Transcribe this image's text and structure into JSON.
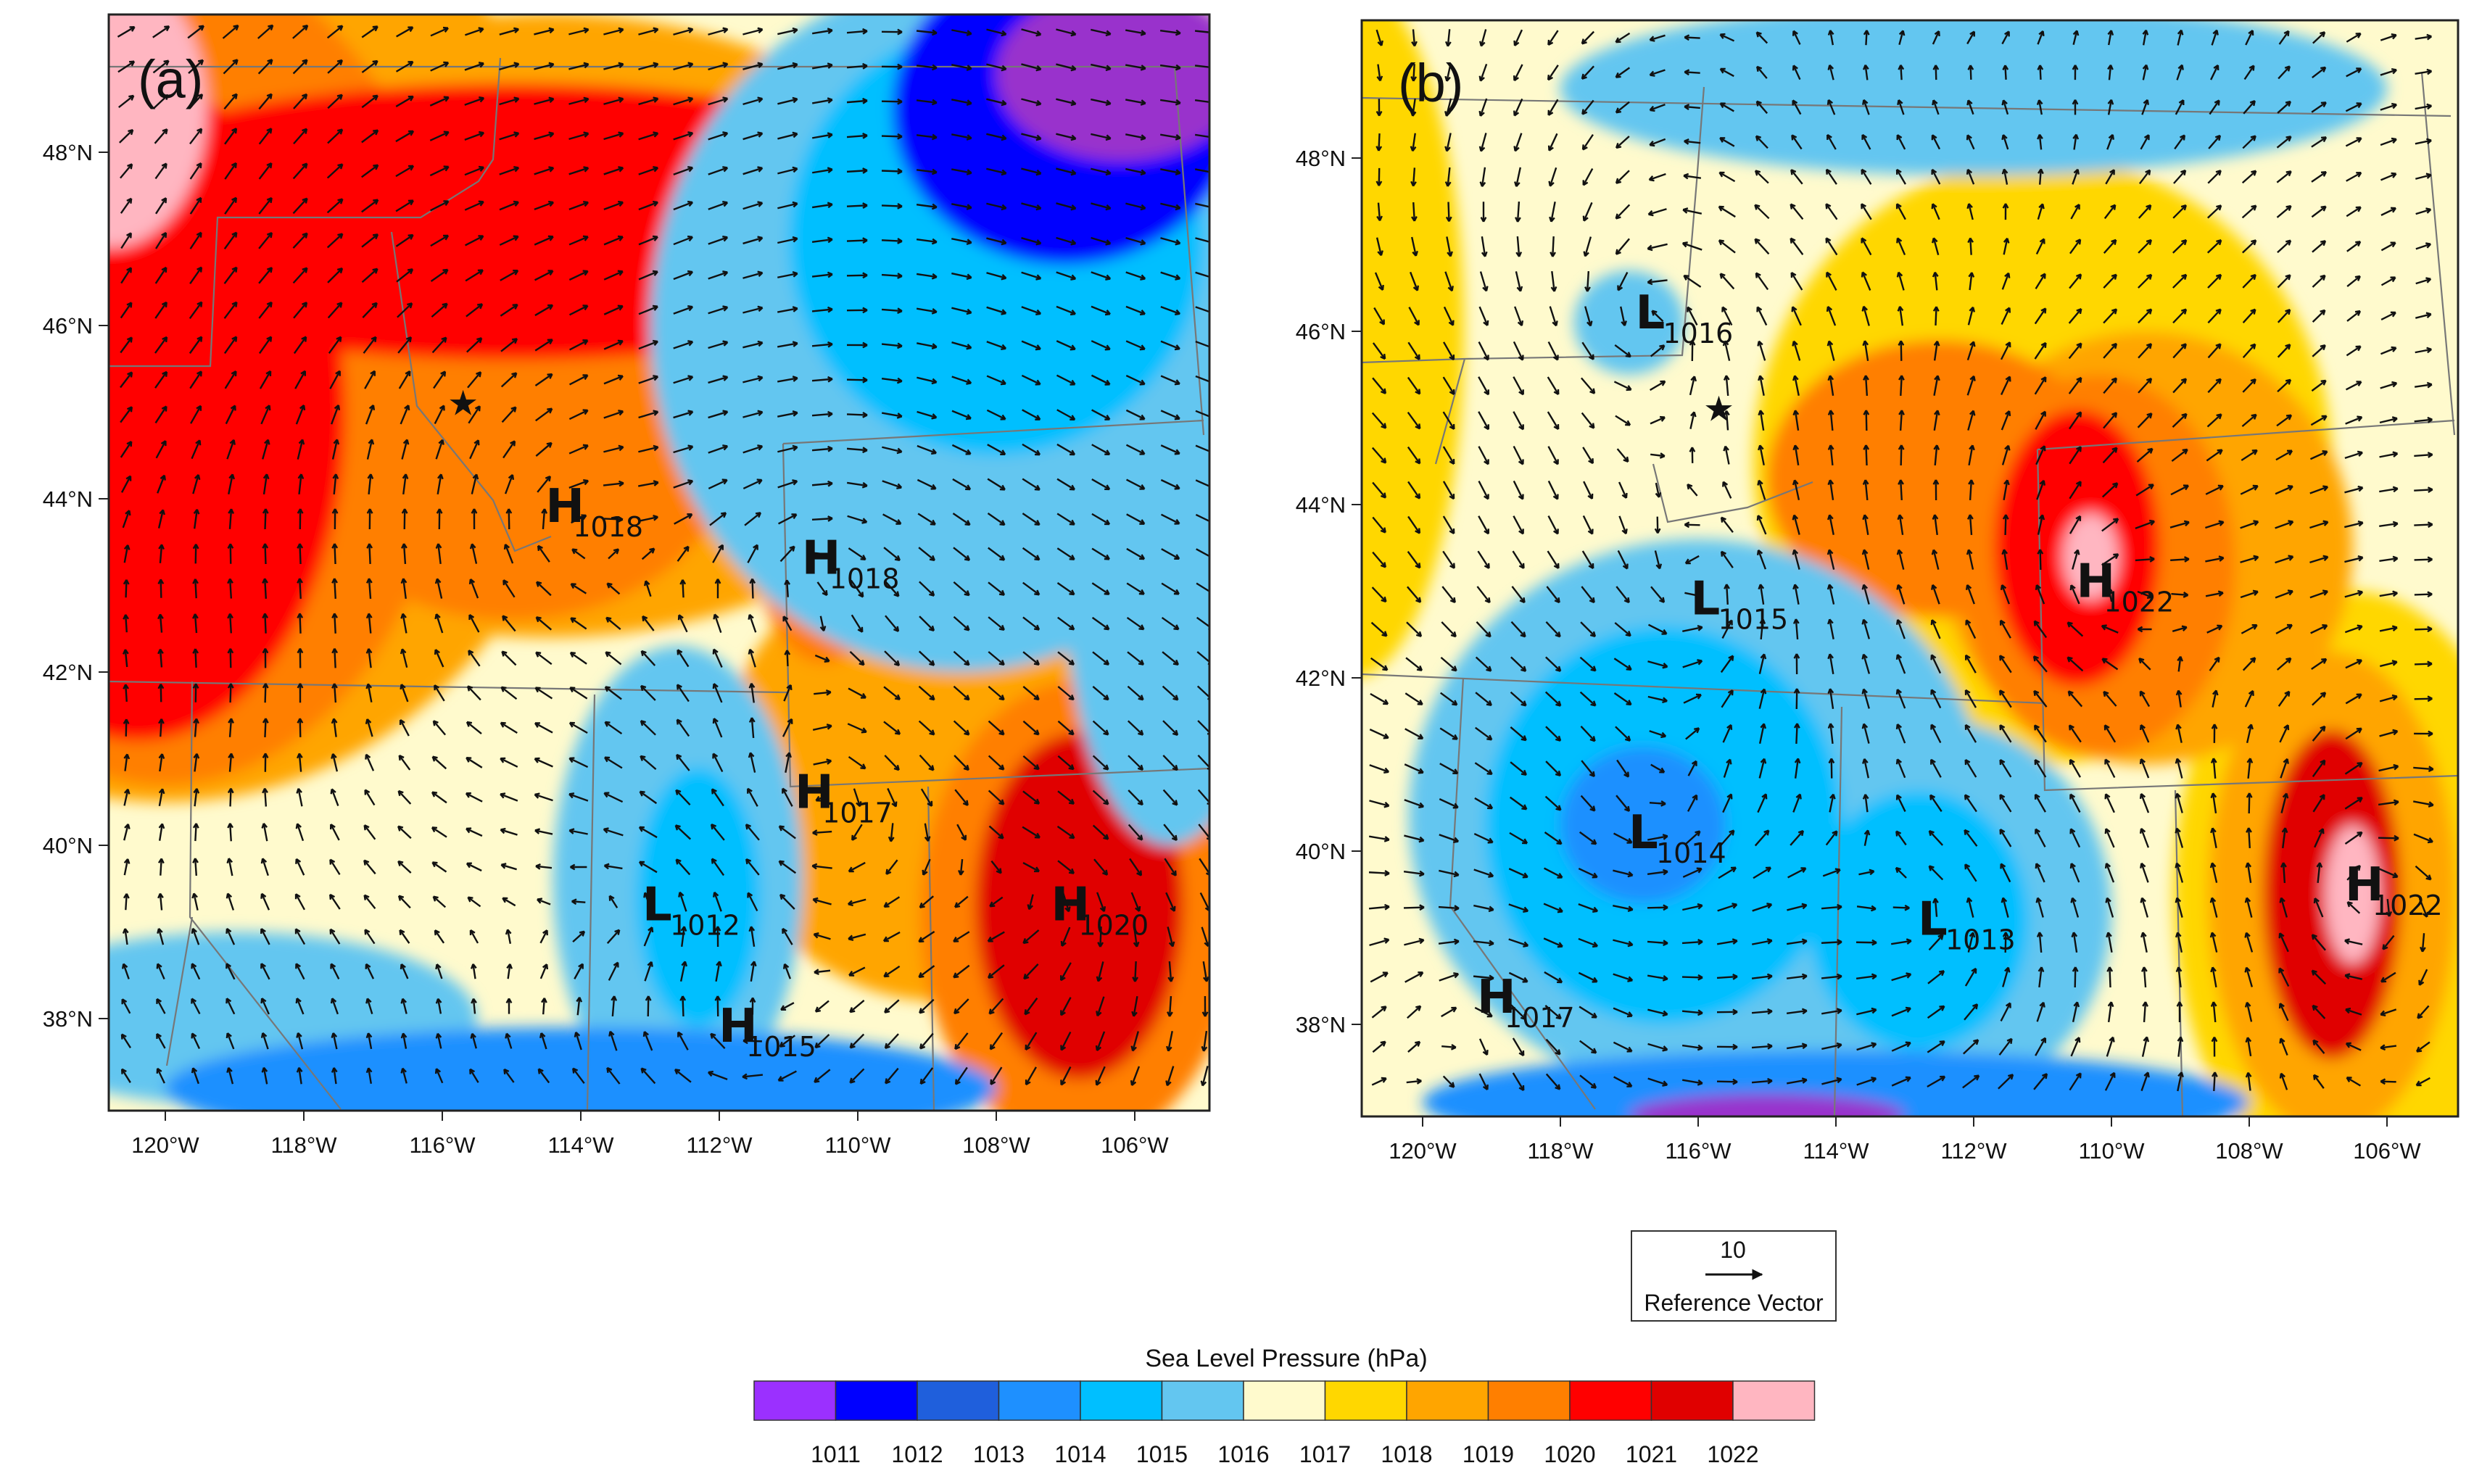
{
  "figure": {
    "panels": [
      {
        "id": "a",
        "label": "(a)",
        "lon_ticks": [
          "120°W",
          "118°W",
          "116°W",
          "114°W",
          "112°W",
          "110°W",
          "108°W",
          "106°W"
        ],
        "lat_ticks": [
          "48°N",
          "46°N",
          "44°N",
          "42°N",
          "40°N",
          "38°N"
        ],
        "base_color": "#fffacd",
        "blobs": [
          {
            "lon": -120.0,
            "lat": 46.0,
            "rx": 6.2,
            "ry": 5.5,
            "color": "#ffa500"
          },
          {
            "lon": -114.5,
            "lat": 46.0,
            "rx": 6.5,
            "ry": 3.6,
            "color": "#ffa500"
          },
          {
            "lon": -108.8,
            "lat": 40.8,
            "rx": 3.2,
            "ry": 2.6,
            "color": "#ffa500"
          },
          {
            "lon": -115.0,
            "lat": 44.6,
            "rx": 3.2,
            "ry": 2.0,
            "color": "#ff7f00"
          },
          {
            "lon": -120.0,
            "lat": 45.5,
            "rx": 4.2,
            "ry": 4.8,
            "color": "#ff7f00"
          },
          {
            "lon": -110.5,
            "lat": 43.6,
            "rx": 1.0,
            "ry": 1.5,
            "color": "#ff7f00"
          },
          {
            "lon": -106.8,
            "lat": 39.2,
            "rx": 2.3,
            "ry": 2.7,
            "color": "#ff7f00"
          },
          {
            "lon": -120.4,
            "lat": 45.0,
            "rx": 3.0,
            "ry": 3.8,
            "color": "#ff0000"
          },
          {
            "lon": -115.0,
            "lat": 47.2,
            "rx": 7.0,
            "ry": 1.6,
            "color": "#ff0000"
          },
          {
            "lon": -106.8,
            "lat": 39.3,
            "rx": 1.5,
            "ry": 2.0,
            "color": "#e00000"
          },
          {
            "lon": -120.8,
            "lat": 48.5,
            "rx": 1.4,
            "ry": 1.6,
            "color": "#ffb6c1"
          },
          {
            "lon": -108.5,
            "lat": 46.0,
            "rx": 4.5,
            "ry": 4.0,
            "color": "#63c6f0"
          },
          {
            "lon": -112.6,
            "lat": 39.6,
            "rx": 1.8,
            "ry": 2.7,
            "color": "#63c6f0"
          },
          {
            "lon": -119.0,
            "lat": 38.0,
            "rx": 3.5,
            "ry": 1.0,
            "color": "#63c6f0"
          },
          {
            "lon": -105.5,
            "lat": 43.0,
            "rx": 1.5,
            "ry": 3.0,
            "color": "#63c6f0"
          },
          {
            "lon": -108.0,
            "lat": 47.0,
            "rx": 3.0,
            "ry": 2.5,
            "color": "#00bfff"
          },
          {
            "lon": -112.3,
            "lat": 39.4,
            "rx": 0.9,
            "ry": 1.5,
            "color": "#00bfff"
          },
          {
            "lon": -114.0,
            "lat": 37.2,
            "rx": 6.0,
            "ry": 0.7,
            "color": "#1e90ff"
          },
          {
            "lon": -107.0,
            "lat": 48.5,
            "rx": 2.5,
            "ry": 1.8,
            "color": "#0000ff"
          },
          {
            "lon": -106.2,
            "lat": 48.9,
            "rx": 1.8,
            "ry": 1.0,
            "color": "#9932cc"
          }
        ],
        "highs_lows": [
          {
            "type": "H",
            "value": "1018",
            "lon": -114.3,
            "lat": 43.9
          },
          {
            "type": "H",
            "value": "1018",
            "lon": -110.6,
            "lat": 43.3
          },
          {
            "type": "H",
            "value": "1017",
            "lon": -110.7,
            "lat": 40.6
          },
          {
            "type": "L",
            "value": "1012",
            "lon": -112.9,
            "lat": 39.3
          },
          {
            "type": "H",
            "value": "1015",
            "lon": -111.8,
            "lat": 37.9
          },
          {
            "type": "H",
            "value": "1020",
            "lon": -107.0,
            "lat": 39.3
          }
        ],
        "star": {
          "lon": -115.7,
          "lat": 45.1
        }
      },
      {
        "id": "b",
        "label": "(b)",
        "lon_ticks": [
          "120°W",
          "118°W",
          "116°W",
          "114°W",
          "112°W",
          "110°W",
          "108°W",
          "106°W"
        ],
        "lat_ticks": [
          "48°N",
          "46°N",
          "44°N",
          "42°N",
          "40°N",
          "38°N"
        ],
        "base_color": "#fffacd",
        "blobs": [
          {
            "lon": -111.0,
            "lat": 44.5,
            "rx": 4.2,
            "ry": 3.5,
            "color": "#ffd700"
          },
          {
            "lon": -121.0,
            "lat": 46.0,
            "rx": 1.6,
            "ry": 4.0,
            "color": "#ffd700"
          },
          {
            "lon": -106.5,
            "lat": 39.5,
            "rx": 2.6,
            "ry": 3.5,
            "color": "#ffd700"
          },
          {
            "lon": -109.5,
            "lat": 43.5,
            "rx": 3.0,
            "ry": 2.5,
            "color": "#ffa500"
          },
          {
            "lon": -106.8,
            "lat": 39.5,
            "rx": 1.8,
            "ry": 2.8,
            "color": "#ffa500"
          },
          {
            "lon": -112.5,
            "lat": 44.3,
            "rx": 2.5,
            "ry": 1.6,
            "color": "#ff7f00"
          },
          {
            "lon": -110.2,
            "lat": 43.3,
            "rx": 2.0,
            "ry": 2.2,
            "color": "#ff7f00"
          },
          {
            "lon": -110.5,
            "lat": 43.5,
            "rx": 1.2,
            "ry": 1.6,
            "color": "#ff0000"
          },
          {
            "lon": -106.8,
            "lat": 39.5,
            "rx": 1.0,
            "ry": 1.9,
            "color": "#e00000"
          },
          {
            "lon": -110.3,
            "lat": 43.4,
            "rx": 0.4,
            "ry": 0.5,
            "color": "#ffb6c1"
          },
          {
            "lon": -106.5,
            "lat": 39.5,
            "rx": 0.4,
            "ry": 0.8,
            "color": "#ffb6c1"
          },
          {
            "lon": -116.0,
            "lat": 40.4,
            "rx": 4.2,
            "ry": 3.2,
            "color": "#63c6f0"
          },
          {
            "lon": -112.5,
            "lat": 39.3,
            "rx": 2.5,
            "ry": 2.2,
            "color": "#63c6f0"
          },
          {
            "lon": -112.0,
            "lat": 48.8,
            "rx": 6.0,
            "ry": 1.0,
            "color": "#63c6f0"
          },
          {
            "lon": -117.0,
            "lat": 46.1,
            "rx": 0.8,
            "ry": 0.6,
            "color": "#63c6f0"
          },
          {
            "lon": -116.5,
            "lat": 40.3,
            "rx": 2.6,
            "ry": 2.3,
            "color": "#00bfff"
          },
          {
            "lon": -112.8,
            "lat": 39.2,
            "rx": 1.6,
            "ry": 1.5,
            "color": "#00bfff"
          },
          {
            "lon": -116.8,
            "lat": 40.3,
            "rx": 1.2,
            "ry": 0.9,
            "color": "#1e90ff"
          },
          {
            "lon": -114.0,
            "lat": 37.1,
            "rx": 6.0,
            "ry": 0.6,
            "color": "#1e90ff"
          },
          {
            "lon": -115.0,
            "lat": 36.95,
            "rx": 2.0,
            "ry": 0.25,
            "color": "#9932cc"
          }
        ],
        "highs_lows": [
          {
            "type": "L",
            "value": "1016",
            "lon": -116.7,
            "lat": 46.2
          },
          {
            "type": "L",
            "value": "1015",
            "lon": -115.9,
            "lat": 42.9
          },
          {
            "type": "L",
            "value": "1014",
            "lon": -116.8,
            "lat": 40.2
          },
          {
            "type": "L",
            "value": "1013",
            "lon": -112.6,
            "lat": 39.2
          },
          {
            "type": "H",
            "value": "1017",
            "lon": -119.0,
            "lat": 38.3
          },
          {
            "type": "H",
            "value": "1022",
            "lon": -110.3,
            "lat": 43.1
          },
          {
            "type": "H",
            "value": "1022",
            "lon": -106.4,
            "lat": 39.6
          }
        ],
        "star": {
          "lon": -115.7,
          "lat": 45.1
        }
      }
    ],
    "colorbar": {
      "title": "Sea Level Pressure  (hPa)",
      "levels": [
        "1011",
        "1012",
        "1013",
        "1014",
        "1015",
        "1016",
        "1017",
        "1018",
        "1019",
        "1020",
        "1021",
        "1022"
      ],
      "colors": [
        "#9b30ff",
        "#0000ff",
        "#1f5fdc",
        "#1e90ff",
        "#00bfff",
        "#63c6f0",
        "#fffacd",
        "#ffd700",
        "#ffa500",
        "#ff7f00",
        "#ff0000",
        "#e00000",
        "#ffb6c1"
      ]
    },
    "reference_vector": {
      "magnitude": "10",
      "label": "Reference Vector"
    }
  }
}
